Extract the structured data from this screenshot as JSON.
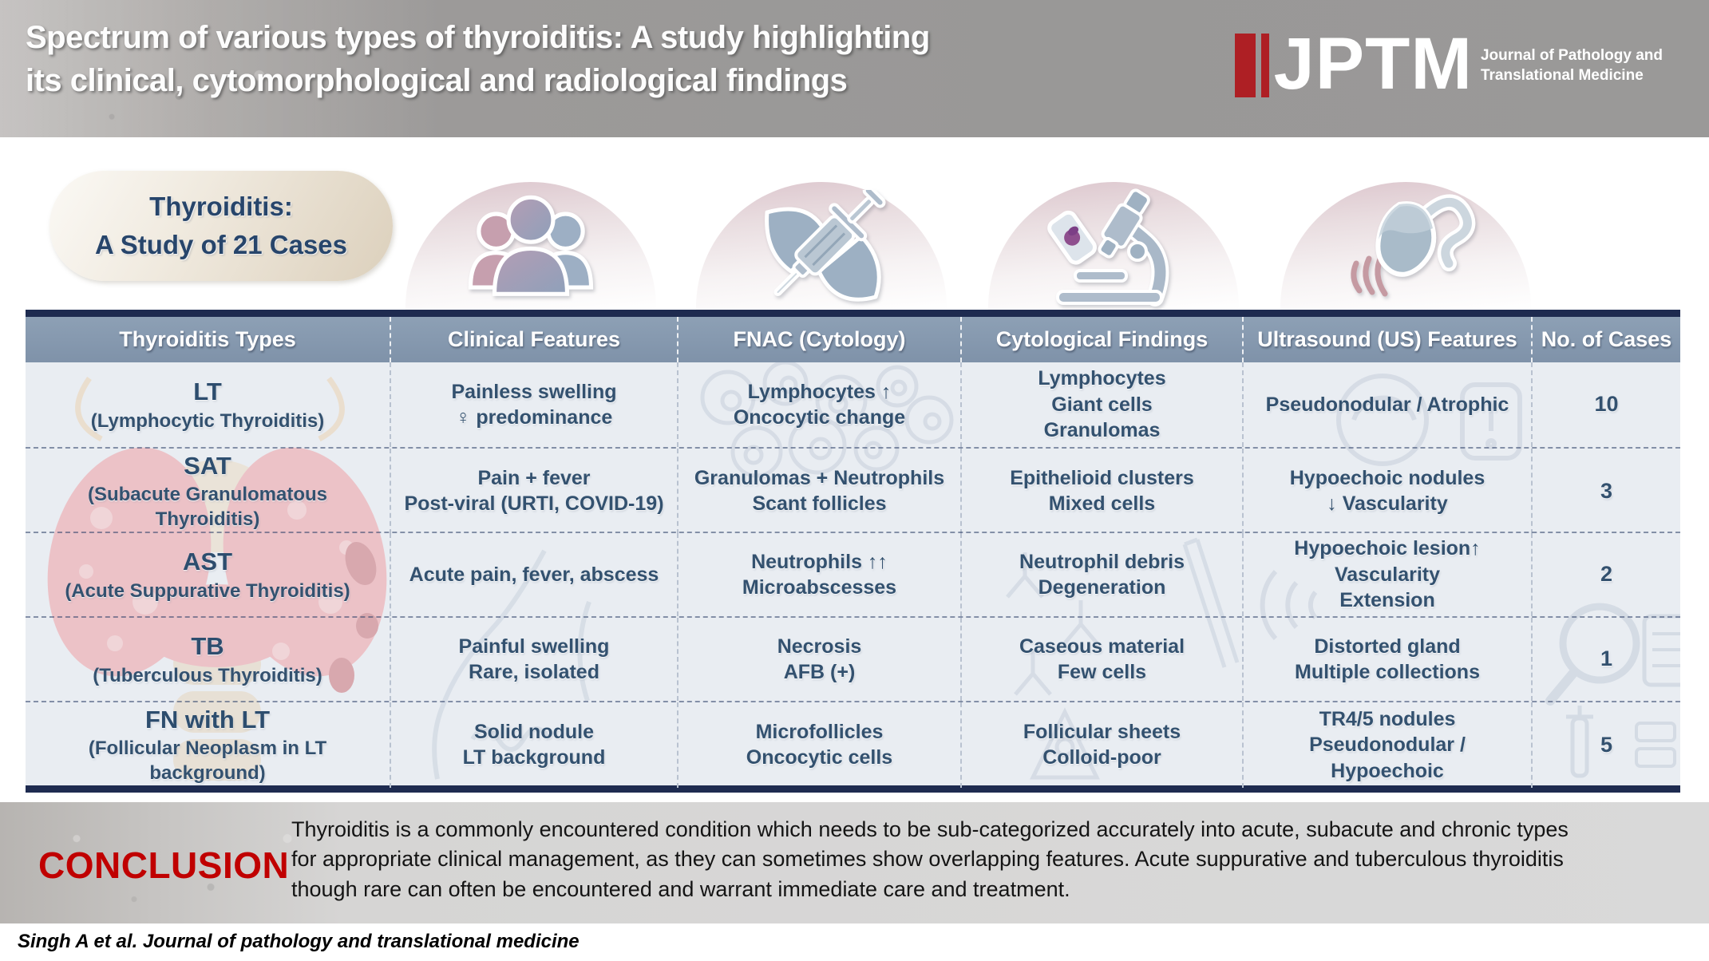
{
  "header": {
    "title_line1": "Spectrum of various types of thyroiditis: A study highlighting",
    "title_line2": "its clinical, cytomorphological and radiological findings",
    "logo": {
      "acronym": "JPTM",
      "name_line1": "Journal of Pathology and",
      "name_line2": "Translational Medicine"
    }
  },
  "study_badge": {
    "line1": "Thyroiditis:",
    "line2": "A Study of 21 Cases"
  },
  "icons": [
    "patients-group-icon",
    "fnac-syringe-icon",
    "microscope-icon",
    "ultrasound-probe-icon"
  ],
  "table": {
    "columns": [
      "Thyroiditis Types",
      "Clinical Features",
      "FNAC (Cytology)",
      "Cytological Findings",
      "Ultrasound (US) Features",
      "No. of Cases"
    ],
    "rows": [
      {
        "abbr": "LT",
        "full": "(Lymphocytic Thyroiditis)",
        "clinical": [
          "Painless swelling",
          "♀ predominance"
        ],
        "fnac": [
          "Lymphocytes ↑",
          "Oncocytic change"
        ],
        "cytology": [
          "Lymphocytes",
          "Giant cells",
          "Granulomas"
        ],
        "ultrasound": [
          "Pseudonodular / Atrophic"
        ],
        "cases": "10"
      },
      {
        "abbr": "SAT",
        "full": "(Subacute Granulomatous Thyroiditis)",
        "clinical": [
          "Pain + fever",
          "Post-viral (URTI, COVID-19)"
        ],
        "fnac": [
          "Granulomas + Neutrophils",
          "Scant follicles"
        ],
        "cytology": [
          "Epithelioid clusters",
          "Mixed cells"
        ],
        "ultrasound": [
          "Hypoechoic nodules",
          "↓ Vascularity"
        ],
        "cases": "3"
      },
      {
        "abbr": "AST",
        "full": "(Acute Suppurative Thyroiditis)",
        "clinical": [
          "Acute pain, fever, abscess"
        ],
        "fnac": [
          "Neutrophils ↑↑",
          "Microabscesses"
        ],
        "cytology": [
          "Neutrophil debris",
          "Degeneration"
        ],
        "ultrasound": [
          "Hypoechoic lesion↑",
          "Vascularity",
          "Extension"
        ],
        "cases": "2"
      },
      {
        "abbr": "TB",
        "full": "(Tuberculous Thyroiditis)",
        "clinical": [
          "Painful swelling",
          "Rare, isolated"
        ],
        "fnac": [
          "Necrosis",
          "AFB (+)"
        ],
        "cytology": [
          "Caseous material",
          "Few cells"
        ],
        "ultrasound": [
          "Distorted gland",
          "Multiple collections"
        ],
        "cases": "1"
      },
      {
        "abbr": "FN with LT",
        "full": "(Follicular Neoplasm in LT background)",
        "clinical": [
          "Solid nodule",
          "LT background"
        ],
        "fnac": [
          "Microfollicles",
          "Oncocytic cells"
        ],
        "cytology": [
          "Follicular sheets",
          "Colloid-poor"
        ],
        "ultrasound": [
          "TR4/5 nodules",
          "Pseudonodular / Hypoechoic"
        ],
        "cases": "5"
      }
    ]
  },
  "conclusion": {
    "label": "CONCLUSION",
    "text": "Thyroiditis is a commonly encountered condition which needs to be sub-categorized accurately into acute, subacute and chronic types for appropriate clinical management, as they can sometimes show overlapping features. Acute suppurative and tuberculous thyroiditis though rare can often be encountered and warrant immediate care and treatment."
  },
  "footer": {
    "citation": "Singh A et al. Journal of pathology and translational medicine"
  },
  "colors": {
    "accent_red": "#ae1f24",
    "conclusion_red": "#c00000",
    "navy": "#1e2b50",
    "table_header_bg": "#8496ac",
    "row_bg": "#e9edf2",
    "badge_bg": "#ddd2c0"
  }
}
